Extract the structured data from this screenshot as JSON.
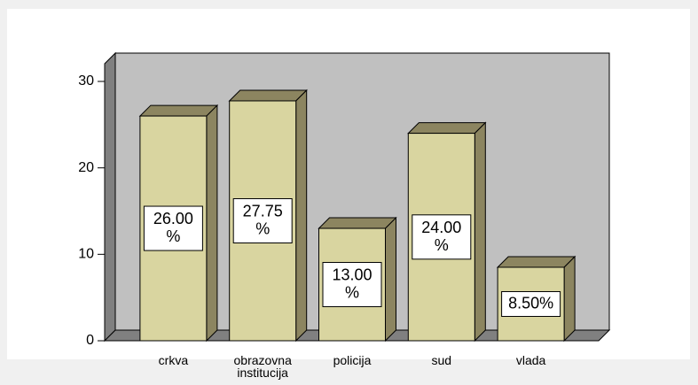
{
  "chart_data": {
    "type": "bar3d",
    "categories": [
      "crkva",
      "obrazovna institucija",
      "policija",
      "sud",
      "vlada"
    ],
    "values": [
      26,
      27.75,
      13,
      24,
      8.5
    ],
    "value_labels": [
      "26.00 %",
      "27.75 %",
      "13.00 %",
      "24.00 %",
      "8.50%"
    ],
    "color": "#d9d5a0",
    "ylim": [
      0,
      30
    ],
    "yticks": [
      0,
      10,
      20,
      30
    ]
  }
}
